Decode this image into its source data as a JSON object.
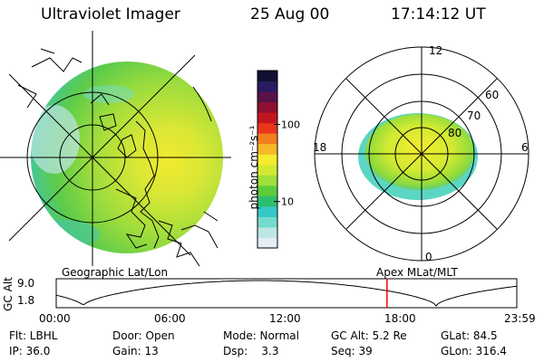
{
  "header": {
    "title": "Ultraviolet Imager",
    "date": "25 Aug 00",
    "time": "17:14:12 UT"
  },
  "colorbar": {
    "unit": "photon cm⁻²s⁻¹",
    "ticks": [
      {
        "label": "100",
        "value": 100
      },
      {
        "label": "10",
        "value": 10
      }
    ],
    "range": [
      2.5,
      500
    ],
    "colors": [
      "#e4eef4",
      "#bfe6e6",
      "#73dccd",
      "#35c8c8",
      "#2dbe6e",
      "#5ccc3c",
      "#9fe03b",
      "#d2ea32",
      "#f4ec2c",
      "#f6b826",
      "#f27f1e",
      "#e8361c",
      "#c11620",
      "#8f1030",
      "#561448",
      "#2a1a62",
      "#101033"
    ]
  },
  "left_map": {
    "label": "Geographic Lat/Lon",
    "icon": "geographic-globe-icon"
  },
  "right_map": {
    "label": "Apex MLat/MLT",
    "mlt_labels": [
      "12",
      "18",
      "6",
      "0"
    ],
    "lat_labels": [
      "60",
      "70",
      "80"
    ]
  },
  "orbit_plot": {
    "ylabel": "GC Alt",
    "yticks": [
      "9.0",
      "1.8"
    ],
    "xticks": [
      "00:00",
      "06:00",
      "12:00",
      "18:00",
      "23:59"
    ],
    "current_time_hours": 17.237,
    "marker_color": "#ff0000"
  },
  "footer": {
    "row1": [
      "Flt: LBHL",
      "Door: Open",
      "Mode: Normal",
      "GC Alt: 5.2 Re",
      "GLat:  84.5"
    ],
    "row2": [
      "IP: 36.0",
      "Gain: 13",
      "Dsp:    3.3",
      "Seq: 39",
      "GLon: 316.4"
    ]
  }
}
